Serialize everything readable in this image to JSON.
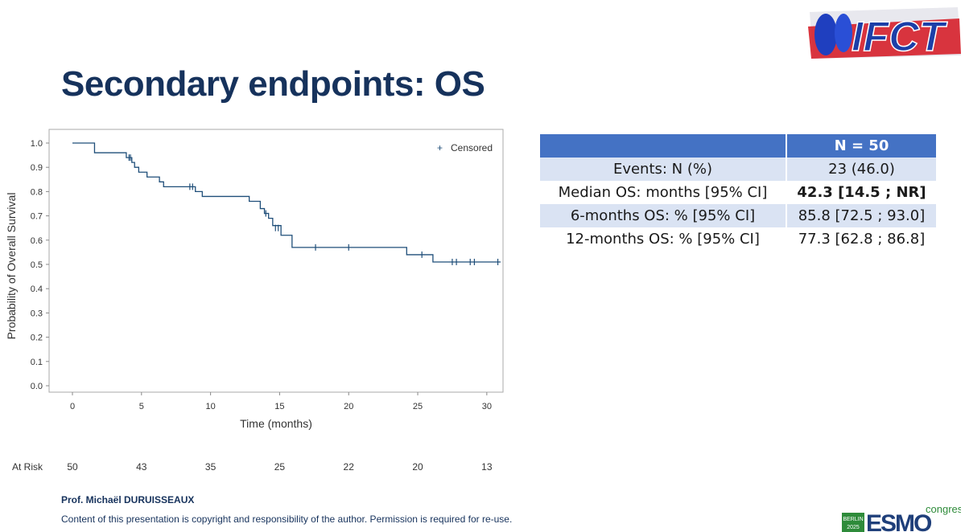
{
  "slide": {
    "title": "Secondary endpoints: OS",
    "author": "Prof. Michaël DURUISSEAUX",
    "copyright": "Content of this presentation is copyright and responsibility of the author. Permission is required for re-use."
  },
  "logos": {
    "ifct_text": "IFCT",
    "esmo_text": "ESMO",
    "esmo_city": "BERLIN",
    "esmo_year": "2025",
    "esmo_suffix": "congress"
  },
  "table": {
    "header": [
      "",
      "N = 50"
    ],
    "rows": [
      {
        "label": "Events: N (%)",
        "value": "23 (46.0)",
        "bold": false
      },
      {
        "label": "Median OS: months [95% CI]",
        "value": "42.3 [14.5 ; NR]",
        "bold": true
      },
      {
        "label": "6-months OS: % [95% CI]",
        "value": "85.8 [72.5 ; 93.0]",
        "bold": false
      },
      {
        "label": "12-months OS: % [95% CI]",
        "value": "77.3 [62.8 ; 86.8]",
        "bold": false
      }
    ]
  },
  "chart_data": {
    "type": "line",
    "subtype": "kaplan-meier step",
    "xlabel": "Time (months)",
    "ylabel": "Probability of Overall Survival",
    "xlim": [
      0,
      31
    ],
    "ylim": [
      0,
      1.0
    ],
    "x_ticks": [
      0,
      5,
      10,
      15,
      20,
      25,
      30
    ],
    "y_ticks": [
      "0.0",
      "0.1",
      "0.2",
      "0.3",
      "0.4",
      "0.5",
      "0.6",
      "0.7",
      "0.8",
      "0.9",
      "1.0"
    ],
    "legend": {
      "label": "Censored",
      "symbol": "+",
      "position": "top-right"
    },
    "grid": false,
    "line_color": "#1f4e79",
    "series": [
      {
        "steps": [
          [
            0,
            1.0
          ],
          [
            1.6,
            0.96
          ],
          [
            3.9,
            0.94
          ],
          [
            4.3,
            0.92
          ],
          [
            4.5,
            0.9
          ],
          [
            4.8,
            0.88
          ],
          [
            5.4,
            0.86
          ],
          [
            6.3,
            0.84
          ],
          [
            6.6,
            0.82
          ],
          [
            8.9,
            0.8
          ],
          [
            9.4,
            0.78
          ],
          [
            11.6,
            0.78
          ],
          [
            12.8,
            0.76
          ],
          [
            13.6,
            0.73
          ],
          [
            13.9,
            0.71
          ],
          [
            14.2,
            0.69
          ],
          [
            14.5,
            0.66
          ],
          [
            15.1,
            0.62
          ],
          [
            15.9,
            0.57
          ],
          [
            24.2,
            0.54
          ],
          [
            26.1,
            0.51
          ],
          [
            31,
            0.51
          ]
        ],
        "censored": [
          [
            4.1,
            0.94
          ],
          [
            4.2,
            0.94
          ],
          [
            8.5,
            0.82
          ],
          [
            8.7,
            0.82
          ],
          [
            14.0,
            0.71
          ],
          [
            14.7,
            0.65
          ],
          [
            14.9,
            0.65
          ],
          [
            17.6,
            0.57
          ],
          [
            20.0,
            0.57
          ],
          [
            25.3,
            0.54
          ],
          [
            27.5,
            0.51
          ],
          [
            27.8,
            0.51
          ],
          [
            28.8,
            0.51
          ],
          [
            29.1,
            0.51
          ],
          [
            30.8,
            0.51
          ]
        ]
      }
    ],
    "at_risk": {
      "label": "At Risk",
      "times": [
        0,
        5,
        10,
        15,
        20,
        25,
        30
      ],
      "counts": [
        "50",
        "43",
        "35",
        "25",
        "22",
        "20",
        "13"
      ]
    }
  }
}
